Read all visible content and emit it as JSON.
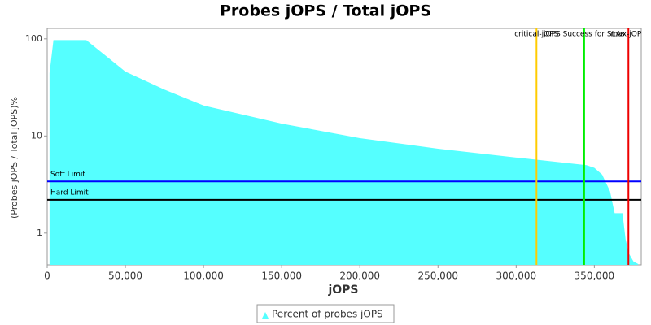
{
  "chart_data": {
    "type": "area",
    "title": "Probes jOPS / Total jOPS",
    "x_label": "jOPS",
    "y_label": "(Probes jOPS / Total jOPS)%",
    "x": [
      1500,
      4000,
      25000,
      35000,
      50000,
      75000,
      100000,
      150000,
      200000,
      250000,
      300000,
      345000,
      350000,
      355000,
      360000,
      363000,
      368000,
      370000,
      372000,
      375000,
      378000
    ],
    "series": [
      {
        "name": "Percent of probes jOPS",
        "color": "#55ffff",
        "values": [
          44.5,
          97,
          97,
          72,
          46,
          30,
          20.6,
          13.4,
          9.5,
          7.4,
          6.0,
          5.0,
          4.7,
          4.0,
          2.7,
          1.6,
          1.6,
          0.86,
          0.62,
          0.51,
          0.48
        ]
      }
    ],
    "xlim": [
      0,
      380000
    ],
    "xticks": [
      0,
      {
        "value": 50000,
        "label": "50,000"
      },
      {
        "value": 100000,
        "label": "100,000"
      },
      {
        "value": 150000,
        "label": "150,000"
      },
      {
        "value": 200000,
        "label": "200,000"
      },
      {
        "value": 250000,
        "label": "250,000"
      },
      {
        "value": 300000,
        "label": "300,000"
      },
      {
        "value": 350000,
        "label": "350,000"
      }
    ],
    "ylim": [
      0.47,
      128
    ],
    "yticks": [
      1,
      10,
      100
    ],
    "log_y": true,
    "hlines": [
      {
        "label": "Soft Limit",
        "value": 3.4,
        "color": "#0000ff"
      },
      {
        "label": "Hard Limit",
        "value": 2.2,
        "color": "#000000"
      }
    ],
    "vlines": [
      {
        "label": "critical-jOPS",
        "value": 313000,
        "color": "#ffcc00"
      },
      {
        "label": "jOPS Success for SLAs",
        "value": 343500,
        "color": "#00ee00"
      },
      {
        "label": "max-jOPS",
        "value": 371800,
        "color": "#ee0000"
      }
    ],
    "legend": "bottom"
  }
}
